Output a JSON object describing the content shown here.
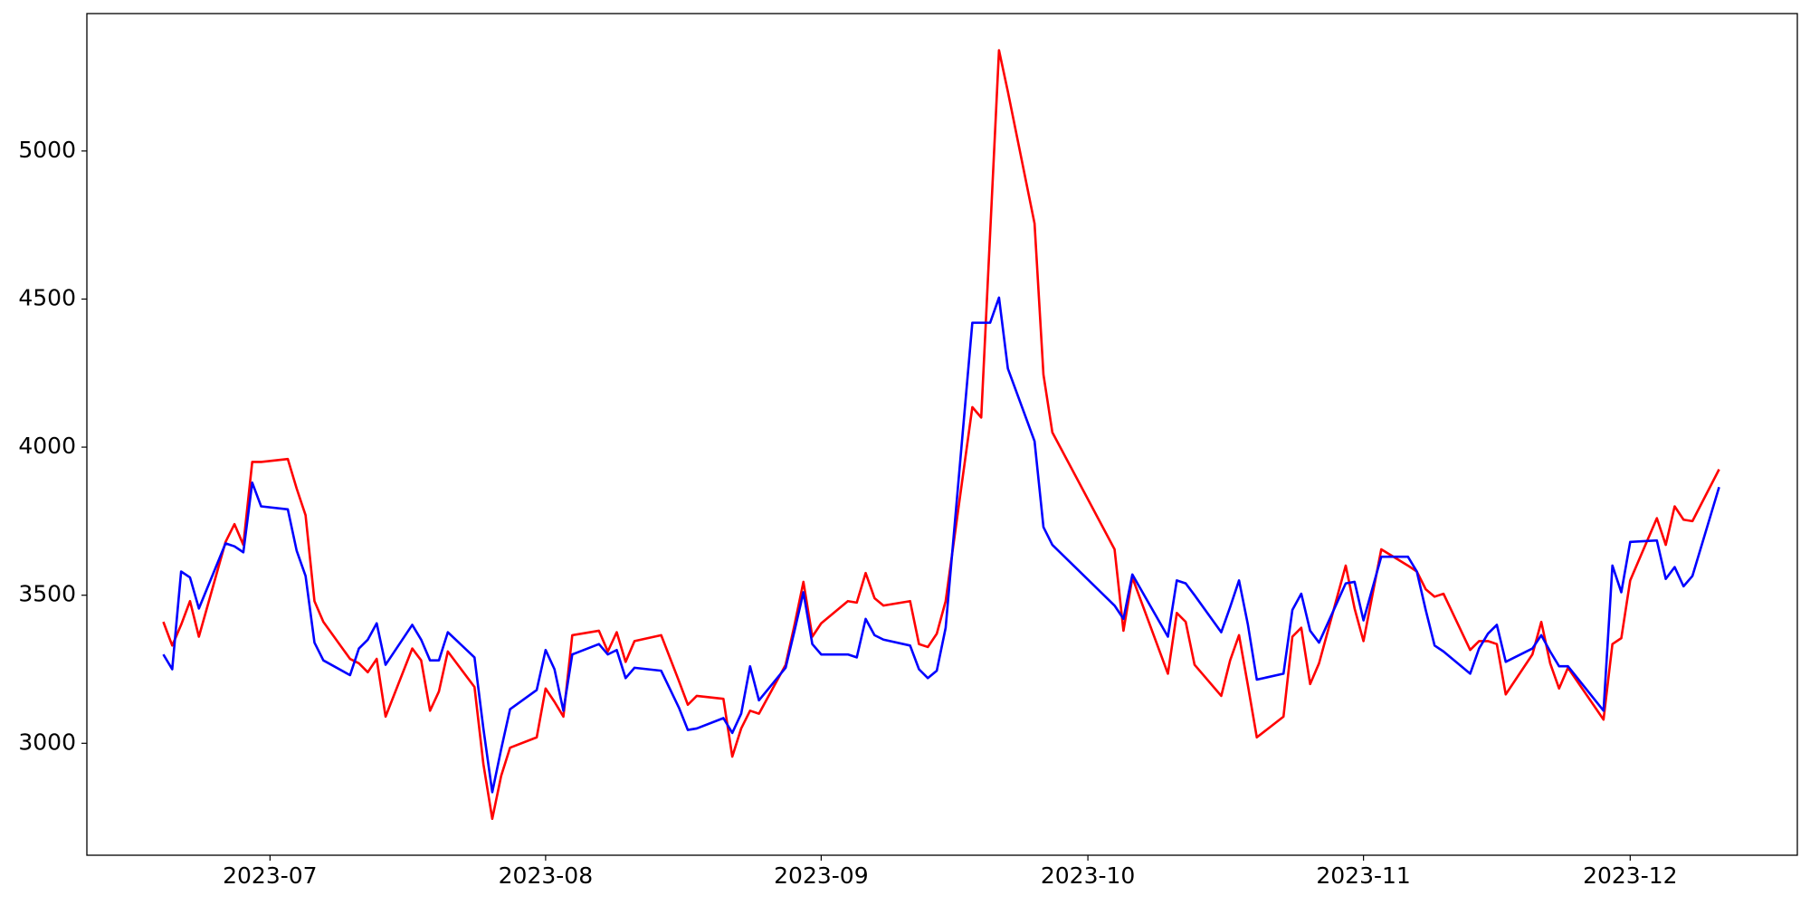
{
  "chart_data": {
    "type": "line",
    "x": [
      19527,
      19528,
      19529,
      19530,
      19531,
      19534,
      19535,
      19536,
      19537,
      19538,
      19541,
      19542,
      19543,
      19544,
      19545,
      19548,
      19549,
      19550,
      19551,
      19552,
      19555,
      19556,
      19557,
      19558,
      19559,
      19562,
      19563,
      19564,
      19565,
      19566,
      19569,
      19570,
      19571,
      19572,
      19573,
      19576,
      19577,
      19578,
      19579,
      19580,
      19583,
      19585,
      19586,
      19587,
      19590,
      19591,
      19592,
      19593,
      19594,
      19597,
      19598,
      19599,
      19600,
      19601,
      19604,
      19605,
      19606,
      19607,
      19608,
      19611,
      19612,
      19613,
      19614,
      19615,
      19618,
      19619,
      19620,
      19621,
      19622,
      19625,
      19626,
      19627,
      19634,
      19635,
      19636,
      19640,
      19641,
      19642,
      19643,
      19646,
      19647,
      19648,
      19649,
      19650,
      19653,
      19654,
      19655,
      19656,
      19657,
      19660,
      19661,
      19662,
      19664,
      19667,
      19668,
      19669,
      19670,
      19671,
      19674,
      19675,
      19676,
      19677,
      19678,
      19681,
      19682,
      19683,
      19684,
      19685,
      19689,
      19690,
      19691,
      19692,
      19695,
      19696,
      19697,
      19698,
      19699,
      19702
    ],
    "series": [
      {
        "color": "#ff0000",
        "values": [
          3410,
          3330,
          3400,
          3480,
          3360,
          3680,
          3740,
          3670,
          3950,
          3950,
          3960,
          3860,
          3770,
          3480,
          3410,
          3285,
          3270,
          3240,
          3285,
          3090,
          3320,
          3280,
          3110,
          3175,
          3310,
          3190,
          2930,
          2745,
          2890,
          2985,
          3020,
          3185,
          3140,
          3090,
          3365,
          3380,
          3310,
          3375,
          3275,
          3345,
          3365,
          3210,
          3130,
          3160,
          3150,
          2955,
          3050,
          3110,
          3100,
          3265,
          3400,
          3545,
          3360,
          3405,
          3480,
          3475,
          3575,
          3490,
          3465,
          3480,
          3335,
          3325,
          3370,
          3480,
          4135,
          4100,
          4720,
          5340,
          5200,
          4755,
          4245,
          4050,
          3655,
          3380,
          3560,
          3235,
          3440,
          3410,
          3265,
          3160,
          3280,
          3365,
          3195,
          3020,
          3090,
          3360,
          3390,
          3200,
          3270,
          3600,
          3455,
          3345,
          3655,
          3600,
          3580,
          3520,
          3495,
          3505,
          3315,
          3345,
          3345,
          3335,
          3165,
          3300,
          3410,
          3270,
          3185,
          3255,
          3080,
          3335,
          3355,
          3550,
          3760,
          3670,
          3800,
          3755,
          3750,
          3925
        ]
      },
      {
        "color": "#0000ff",
        "values": [
          3300,
          3250,
          3580,
          3560,
          3455,
          3675,
          3665,
          3645,
          3880,
          3800,
          3790,
          3650,
          3565,
          3340,
          3280,
          3230,
          3320,
          3350,
          3405,
          3265,
          3400,
          3350,
          3280,
          3280,
          3375,
          3290,
          3050,
          2835,
          2980,
          3115,
          3180,
          3315,
          3250,
          3110,
          3300,
          3335,
          3300,
          3315,
          3220,
          3255,
          3245,
          3120,
          3045,
          3050,
          3085,
          3035,
          3100,
          3260,
          3145,
          3255,
          3380,
          3510,
          3335,
          3300,
          3300,
          3290,
          3420,
          3365,
          3350,
          3330,
          3250,
          3220,
          3245,
          3390,
          4420,
          4420,
          4420,
          4505,
          4265,
          4020,
          3730,
          3670,
          3465,
          3420,
          3570,
          3360,
          3550,
          3540,
          3500,
          3375,
          3460,
          3550,
          3400,
          3215,
          3235,
          3450,
          3505,
          3380,
          3340,
          3540,
          3545,
          3415,
          3630,
          3630,
          3580,
          3450,
          3330,
          3310,
          3235,
          3320,
          3370,
          3400,
          3275,
          3320,
          3365,
          3310,
          3260,
          3260,
          3110,
          3600,
          3510,
          3680,
          3685,
          3555,
          3595,
          3530,
          3565,
          3865
        ]
      }
    ],
    "xlim": [
      19518.4,
      19710.8
    ],
    "xticks": [
      {
        "value": 19539,
        "label": "2023-07"
      },
      {
        "value": 19570,
        "label": "2023-08"
      },
      {
        "value": 19601,
        "label": "2023-09"
      },
      {
        "value": 19631,
        "label": "2023-10"
      },
      {
        "value": 19662,
        "label": "2023-11"
      },
      {
        "value": 19692,
        "label": "2023-12"
      }
    ],
    "ylim": [
      2622,
      5464
    ],
    "yticks": [
      3000,
      3500,
      4000,
      4500,
      5000
    ],
    "grid": false
  }
}
